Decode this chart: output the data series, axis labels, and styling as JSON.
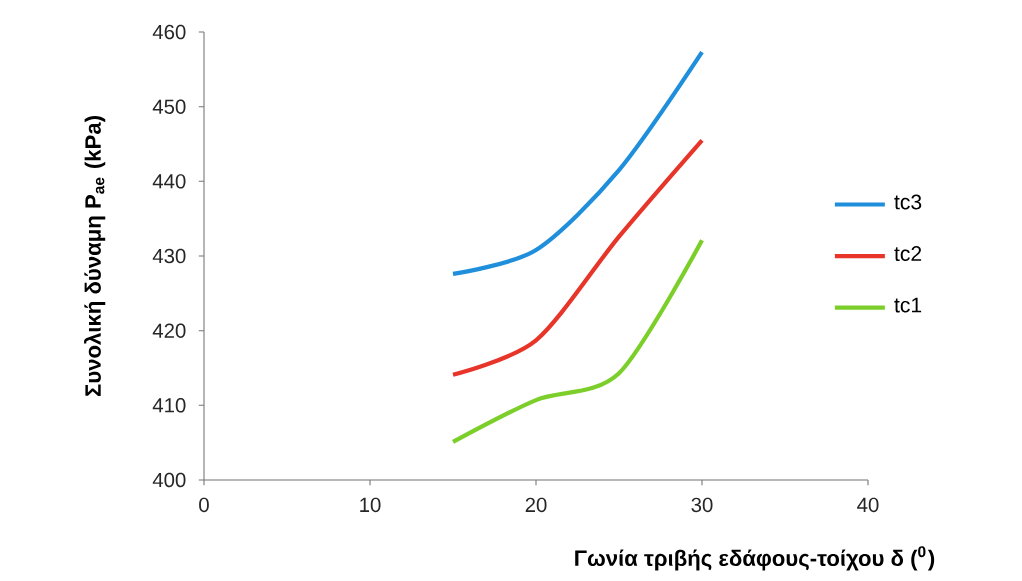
{
  "chart_data": {
    "type": "line",
    "xlabel": "Γωνία τριβής εδάφους-τοίχου  δ ($^{0}$)",
    "ylabel": "Συνολική δύναμη P$_{ae}$ (kPa)",
    "x": [
      15,
      20,
      25,
      30
    ],
    "series": [
      {
        "name": "tc3",
        "color": "#1f8fdc",
        "values": [
          427.6,
          430.8,
          441.5,
          457.3
        ]
      },
      {
        "name": "tc2",
        "color": "#e8352a",
        "values": [
          414.1,
          418.7,
          432.6,
          445.5
        ]
      },
      {
        "name": "tc1",
        "color": "#7ccf2a",
        "values": [
          405.1,
          410.7,
          414.3,
          432.1
        ]
      }
    ],
    "xlim": [
      0,
      40
    ],
    "xticks": [
      0,
      10,
      20,
      30,
      40
    ],
    "ylim": [
      400,
      460
    ],
    "yticks": [
      400,
      410,
      420,
      430,
      440,
      450,
      460
    ],
    "grid": false,
    "legend": "right",
    "marker": "none",
    "line_style": "solid"
  }
}
